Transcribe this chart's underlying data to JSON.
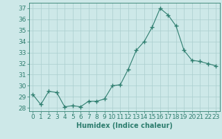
{
  "x": [
    0,
    1,
    2,
    3,
    4,
    5,
    6,
    7,
    8,
    9,
    10,
    11,
    12,
    13,
    14,
    15,
    16,
    17,
    18,
    19,
    20,
    21,
    22,
    23
  ],
  "y": [
    29.2,
    28.3,
    29.5,
    29.4,
    28.1,
    28.2,
    28.1,
    28.6,
    28.6,
    28.8,
    30.0,
    30.1,
    31.5,
    33.2,
    34.0,
    35.3,
    37.0,
    36.4,
    35.4,
    33.2,
    32.3,
    32.2,
    32.0,
    31.8
  ],
  "line_color": "#2d7d6e",
  "marker": "+",
  "marker_size": 4,
  "bg_color": "#cde8e8",
  "grid_color": "#aacece",
  "xlabel": "Humidex (Indice chaleur)",
  "ylabel_ticks": [
    28,
    29,
    30,
    31,
    32,
    33,
    34,
    35,
    36,
    37
  ],
  "ylim": [
    27.7,
    37.5
  ],
  "xlim": [
    -0.5,
    23.5
  ],
  "xticks": [
    0,
    1,
    2,
    3,
    4,
    5,
    6,
    7,
    8,
    9,
    10,
    11,
    12,
    13,
    14,
    15,
    16,
    17,
    18,
    19,
    20,
    21,
    22,
    23
  ],
  "tick_color": "#2d7d6e",
  "label_fontsize": 7,
  "tick_fontsize": 6.5
}
